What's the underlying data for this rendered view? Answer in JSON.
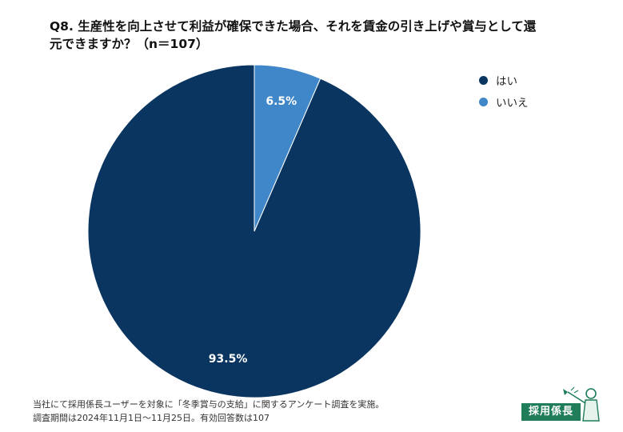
{
  "title": {
    "line1": "Q8. 生産性を向上させて利益が確保できた場合、それを賃金の引き上げや賞与として還",
    "line2": "元できますか？（n＝107）"
  },
  "chart_data": {
    "type": "pie",
    "title": "Q8. 生産性を向上させて利益が確保できた場合、それを賃金の引き上げや賞与として還元できますか？（n＝107）",
    "categories": [
      "はい",
      "いいえ"
    ],
    "values": [
      93.5,
      6.5
    ],
    "labels": [
      "93.5%",
      "6.5%"
    ],
    "colors": [
      "#0a3560",
      "#3f87c8"
    ],
    "start": "12 o'clock",
    "direction": "counterclockwise",
    "legend_position": "top-right"
  },
  "legend": {
    "items": [
      {
        "label": "はい",
        "color": "#0a3560"
      },
      {
        "label": "いいえ",
        "color": "#3f87c8"
      }
    ]
  },
  "footnote": {
    "line1": "当社にて採用係長ユーザーを対象に「冬季賞与の支給」に関するアンケート調査を実施。",
    "line2": "調査期間は2024年11月1日〜11月25日。有効回答数は107"
  },
  "logo": {
    "text": "採用係長"
  }
}
